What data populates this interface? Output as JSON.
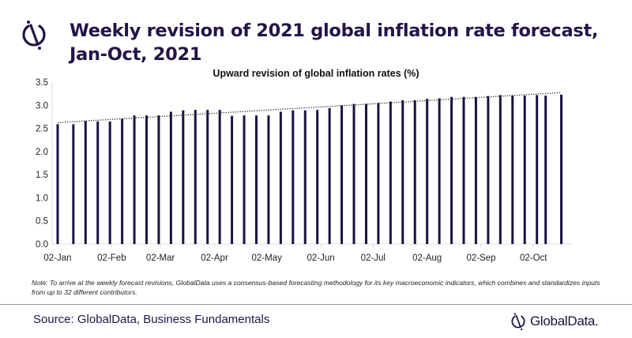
{
  "header": {
    "title": "Weekly revision of 2021 global inflation rate forecast, Jan-Oct, 2021",
    "logo_icon": "globaldata-logo-icon"
  },
  "chart_data": {
    "type": "bar",
    "title": "Upward revision of global inflation rates (%)",
    "xlabel": "",
    "ylabel": "",
    "ylim": [
      0,
      3.5
    ],
    "yticks": [
      "0.0",
      "0.5",
      "1.0",
      "1.5",
      "2.0",
      "2.5",
      "3.0",
      "3.5"
    ],
    "xtick_labels": [
      {
        "label": "02-Jan",
        "date": "2021-01-02"
      },
      {
        "label": "02-Feb",
        "date": "2021-02-02"
      },
      {
        "label": "02-Mar",
        "date": "2021-03-02"
      },
      {
        "label": "02-Apr",
        "date": "2021-04-02"
      },
      {
        "label": "02-May",
        "date": "2021-05-02"
      },
      {
        "label": "02-Jun",
        "date": "2021-06-02"
      },
      {
        "label": "02-Jul",
        "date": "2021-07-02"
      },
      {
        "label": "02-Aug",
        "date": "2021-08-02"
      },
      {
        "label": "02-Sep",
        "date": "2021-09-02"
      },
      {
        "label": "02-Oct",
        "date": "2021-10-02"
      }
    ],
    "x": [
      "2021-01-02",
      "2021-01-11",
      "2021-01-18",
      "2021-01-25",
      "2021-02-01",
      "2021-02-08",
      "2021-02-15",
      "2021-02-22",
      "2021-03-01",
      "2021-03-08",
      "2021-03-15",
      "2021-03-22",
      "2021-03-29",
      "2021-04-05",
      "2021-04-12",
      "2021-04-19",
      "2021-04-26",
      "2021-05-03",
      "2021-05-10",
      "2021-05-17",
      "2021-05-24",
      "2021-05-31",
      "2021-06-07",
      "2021-06-14",
      "2021-06-21",
      "2021-06-28",
      "2021-07-05",
      "2021-07-12",
      "2021-07-19",
      "2021-07-26",
      "2021-08-02",
      "2021-08-09",
      "2021-08-16",
      "2021-08-23",
      "2021-08-30",
      "2021-09-06",
      "2021-09-13",
      "2021-09-20",
      "2021-09-27",
      "2021-10-04",
      "2021-10-09",
      "2021-10-18"
    ],
    "values": [
      2.59,
      2.59,
      2.66,
      2.65,
      2.65,
      2.71,
      2.78,
      2.78,
      2.78,
      2.86,
      2.89,
      2.9,
      2.9,
      2.9,
      2.77,
      2.78,
      2.78,
      2.78,
      2.86,
      2.89,
      2.89,
      2.9,
      2.94,
      3.0,
      3.03,
      3.03,
      3.05,
      3.08,
      3.11,
      3.11,
      3.14,
      3.15,
      3.18,
      3.18,
      3.18,
      3.2,
      3.22,
      3.21,
      3.21,
      3.22,
      3.21,
      3.23
    ],
    "trendline": "linear (dotted)",
    "grid": false,
    "bar_color": "#1c1240"
  },
  "note": "Note: To arrive at the weekly forecast revisions, GlobalData uses a consensus-based forecasting methodology for its key macroeconomic indicators, which combines and standardizes inputs from up to 32 different contributors.",
  "footer": {
    "source": "Source: GlobalData, Business Fundamentals",
    "brand": "GlobalData."
  }
}
